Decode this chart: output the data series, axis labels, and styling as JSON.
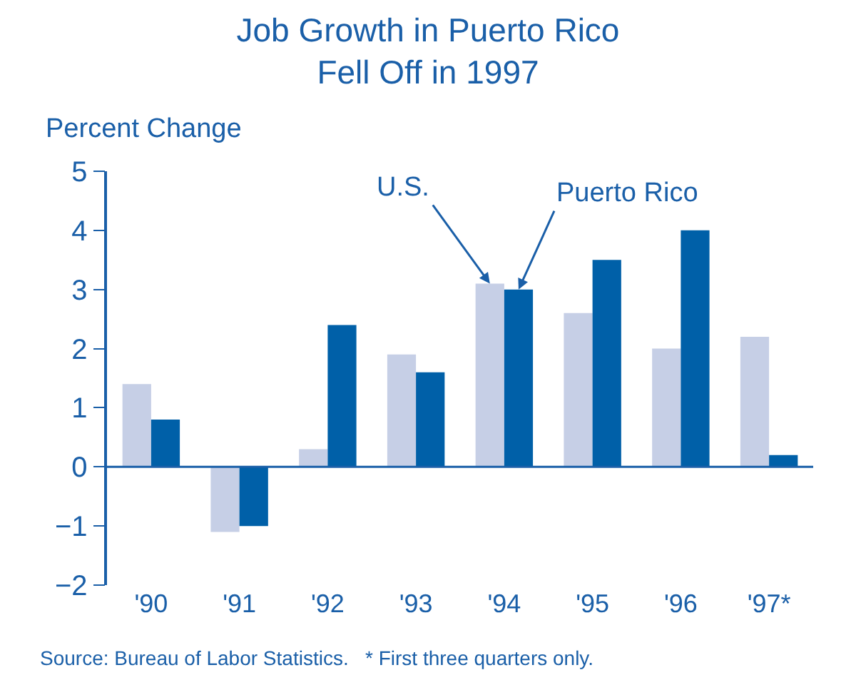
{
  "chart_data": {
    "type": "bar",
    "title": "Job Growth in Puerto Rico\nFell Off in 1997",
    "ylabel": "Percent Change",
    "categories": [
      "'90",
      "'91",
      "'92",
      "'93",
      "'94",
      "'95",
      "'96",
      "'97*"
    ],
    "series": [
      {
        "name": "U.S.",
        "color": "#c6cfe6",
        "values": [
          1.4,
          -1.1,
          0.3,
          1.9,
          3.1,
          2.6,
          2.0,
          2.2
        ]
      },
      {
        "name": "Puerto Rico",
        "color": "#0060a8",
        "values": [
          0.8,
          -1.0,
          2.4,
          1.6,
          3.0,
          3.5,
          4.0,
          0.2
        ]
      }
    ],
    "ylim": [
      -2,
      5
    ],
    "yticks": [
      {
        "value": -2,
        "label": "−2"
      },
      {
        "value": -1,
        "label": "−1"
      },
      0,
      1,
      2,
      3,
      4,
      5
    ],
    "ref_lines": [
      {
        "axis": "y",
        "value": 0,
        "color": "#1a5fa8"
      }
    ],
    "legend": false,
    "annotations": [
      "Source: Bureau of Labor Statistics.   * First three quarters only."
    ]
  }
}
